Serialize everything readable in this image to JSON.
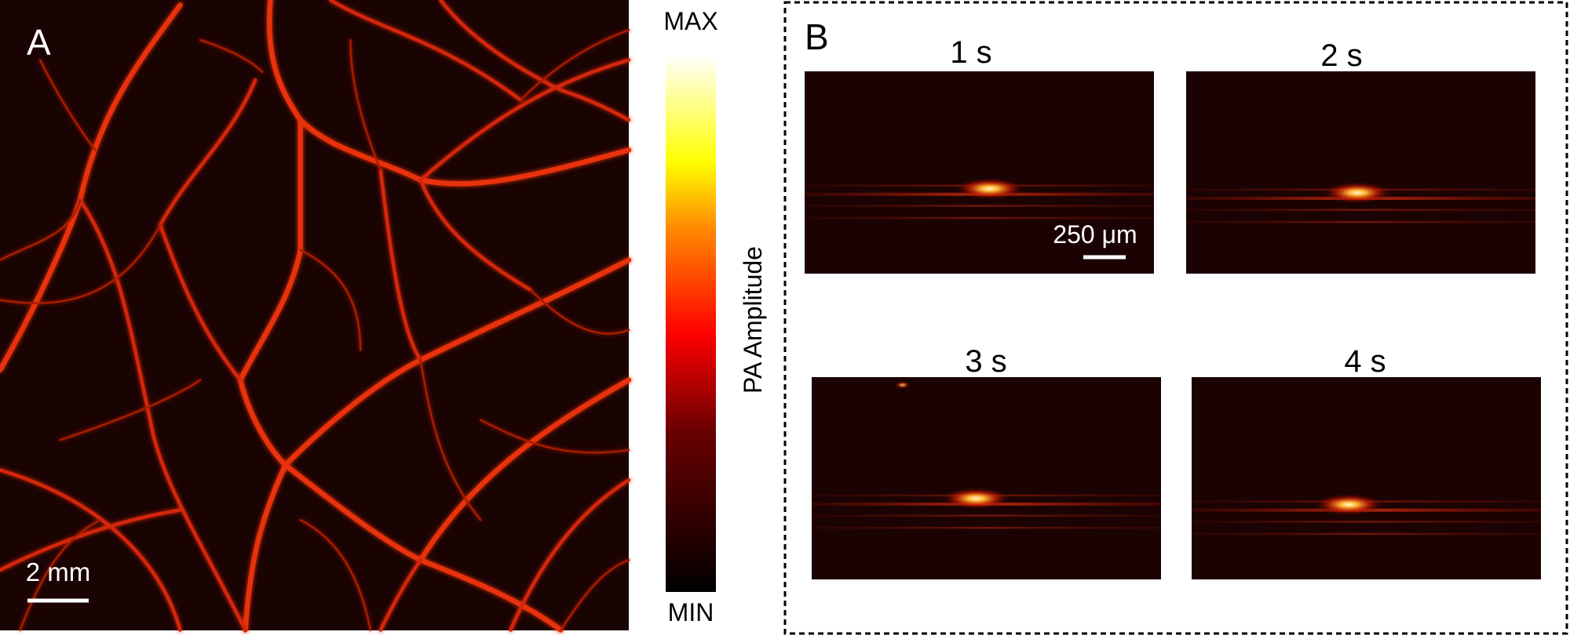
{
  "panel_a": {
    "label": "A",
    "scale_bar": "2 mm"
  },
  "colorbar": {
    "max": "MAX",
    "min": "MIN",
    "label": "PA Amplitude"
  },
  "panel_b": {
    "label": "B",
    "frames": [
      {
        "title": "1 s"
      },
      {
        "title": "2 s"
      },
      {
        "title": "3 s"
      },
      {
        "title": "4 s"
      }
    ],
    "scale_bar": "250 μm"
  }
}
